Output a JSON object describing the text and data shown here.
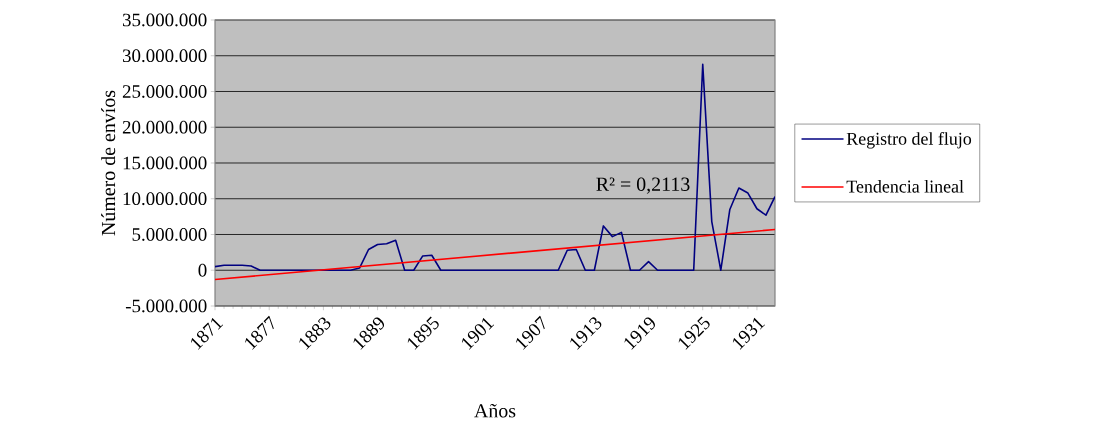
{
  "chart_data": {
    "type": "line",
    "xlabel": "Años",
    "ylabel": "Número de envíos",
    "annotations": [
      "R² = 0,2113"
    ],
    "series": [
      {
        "name": "Registro del flujo",
        "color": "#000080",
        "x": [
          1871,
          1872,
          1873,
          1874,
          1875,
          1876,
          1877,
          1878,
          1879,
          1880,
          1881,
          1882,
          1883,
          1884,
          1885,
          1886,
          1887,
          1888,
          1889,
          1890,
          1891,
          1892,
          1893,
          1894,
          1895,
          1896,
          1897,
          1898,
          1899,
          1900,
          1901,
          1902,
          1903,
          1904,
          1905,
          1906,
          1907,
          1908,
          1909,
          1910,
          1911,
          1912,
          1913,
          1914,
          1915,
          1916,
          1917,
          1918,
          1919,
          1920,
          1921,
          1922,
          1923,
          1924,
          1925,
          1926,
          1927,
          1928,
          1929,
          1930,
          1931,
          1932,
          1933
        ],
        "values": [
          500000,
          700000,
          700000,
          700000,
          600000,
          0,
          0,
          0,
          0,
          0,
          0,
          0,
          0,
          0,
          0,
          0,
          300000,
          2900000,
          3600000,
          3700000,
          4200000,
          0,
          0,
          2000000,
          2100000,
          0,
          0,
          0,
          0,
          0,
          0,
          0,
          0,
          0,
          0,
          0,
          0,
          0,
          0,
          2800000,
          2900000,
          0,
          0,
          6200000,
          4700000,
          5300000,
          0,
          0,
          1200000,
          0,
          0,
          0,
          0,
          0,
          28800000,
          6800000,
          0,
          8500000,
          11500000,
          10800000,
          8600000,
          7700000,
          10300000
        ]
      },
      {
        "name": "Tendencia lineal",
        "type": "line",
        "color": "#ff0000",
        "x": [
          1871,
          1933
        ],
        "values": [
          -1300000,
          5700000
        ]
      }
    ],
    "xlim": [
      1871,
      1933
    ],
    "xticks": [
      1871,
      1877,
      1883,
      1889,
      1895,
      1901,
      1907,
      1913,
      1919,
      1925,
      1931
    ],
    "ylim": [
      -5000000,
      35000000
    ],
    "yticks": [
      {
        "value": -5000000,
        "label": "-5.000.000"
      },
      {
        "value": 0,
        "label": "0"
      },
      {
        "value": 5000000,
        "label": "5.000.000"
      },
      {
        "value": 10000000,
        "label": "10.000.000"
      },
      {
        "value": 15000000,
        "label": "15.000.000"
      },
      {
        "value": 20000000,
        "label": "20.000.000"
      },
      {
        "value": 25000000,
        "label": "25.000.000"
      },
      {
        "value": 30000000,
        "label": "30.000.000"
      },
      {
        "value": 35000000,
        "label": "35.000.000"
      }
    ],
    "grid": "y",
    "legend": "right",
    "marker": "none",
    "line_style": "solid"
  }
}
